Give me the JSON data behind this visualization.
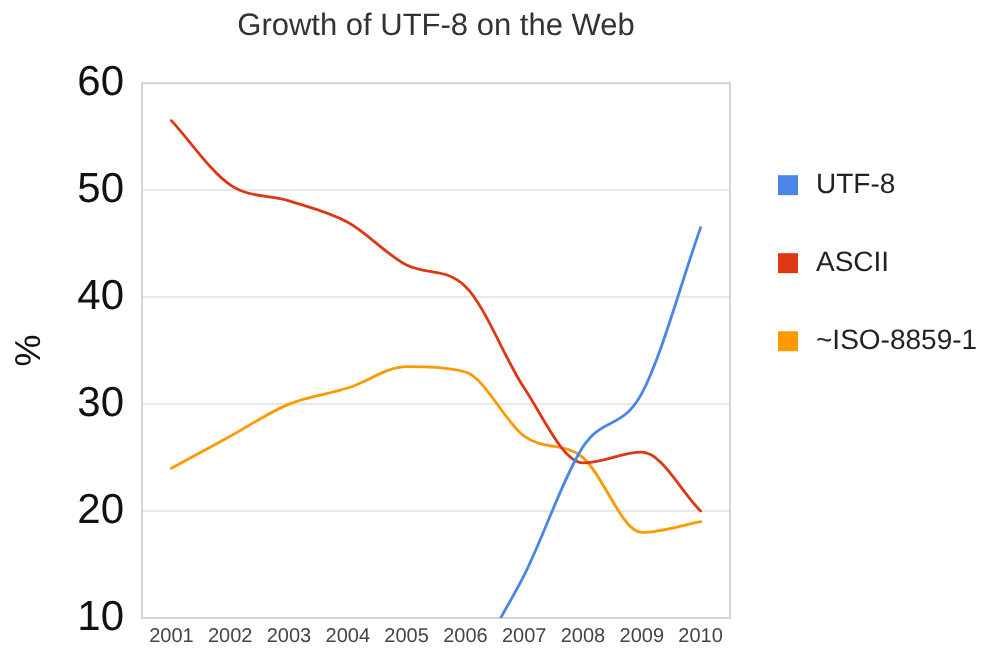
{
  "chart_data": {
    "type": "line",
    "title": "Growth of UTF-8 on the Web",
    "ylabel": "%",
    "x": [
      2001,
      2002,
      2003,
      2004,
      2005,
      2006,
      2007,
      2008,
      2009,
      2010
    ],
    "xlim": [
      2000.5,
      2010.5
    ],
    "xticks": [
      2001,
      2002,
      2003,
      2004,
      2005,
      2006,
      2007,
      2008,
      2009,
      2010
    ],
    "ylim": [
      10,
      60
    ],
    "yticks": [
      10,
      20,
      30,
      40,
      50,
      60
    ],
    "grid": "y",
    "legend": "right",
    "series": [
      {
        "name": "UTF-8",
        "color": "#4a86e8",
        "x": [
          2006.6,
          2007,
          2008,
          2009,
          2010
        ],
        "values": [
          10,
          14,
          26,
          31,
          46.5
        ]
      },
      {
        "name": "ASCII",
        "color": "#dc3912",
        "values": [
          56.5,
          50.5,
          49,
          47,
          43,
          41,
          31.5,
          24.5,
          25.5,
          20
        ]
      },
      {
        "name": "~ISO-8859-1",
        "color": "#ff9900",
        "values": [
          24,
          27,
          30,
          31.5,
          33.5,
          33,
          27,
          25,
          18,
          19
        ]
      }
    ]
  }
}
